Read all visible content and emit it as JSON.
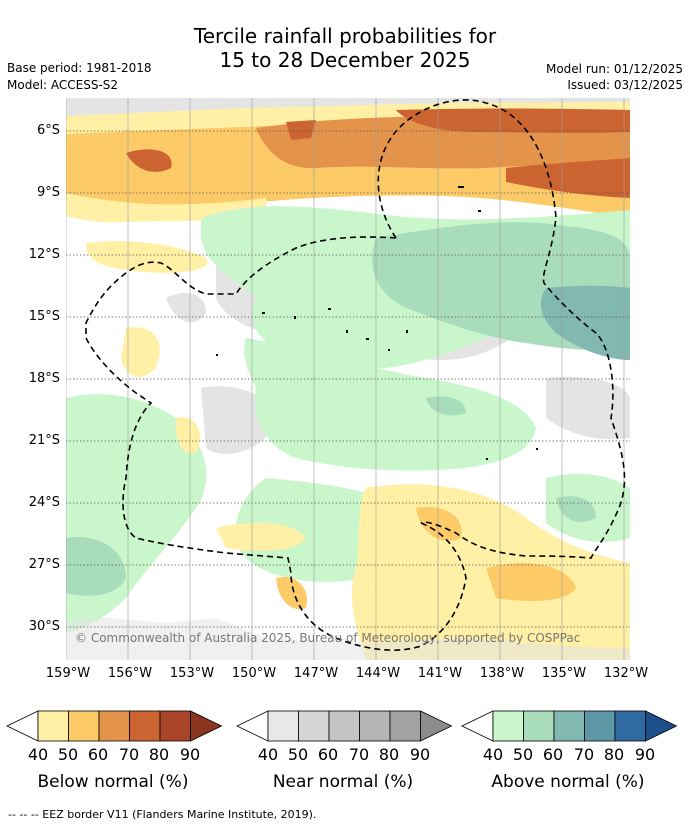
{
  "title": {
    "line1": "Tercile rainfall probabilities for",
    "line2": "15 to 28 December 2025"
  },
  "meta": {
    "base_period": "Base period: 1981-2018",
    "model": "Model: ACCESS-S2",
    "model_run": "Model run: 01/12/2025",
    "issued": "Issued: 03/12/2025"
  },
  "axes": {
    "lat_labels": [
      "6°S",
      "9°S",
      "12°S",
      "15°S",
      "18°S",
      "21°S",
      "24°S",
      "27°S",
      "30°S"
    ],
    "lon_labels": [
      "159°W",
      "156°W",
      "153°W",
      "150°W",
      "147°W",
      "144°W",
      "141°W",
      "138°W",
      "135°W",
      "132°W"
    ]
  },
  "copyright": "© Commonwealth of Australia 2025, Bureau of Meteorology, supported by COSPPac",
  "legend": {
    "ticks": [
      "40",
      "50",
      "60",
      "70",
      "80",
      "90"
    ],
    "below": {
      "label": "Below normal (%)",
      "colors": [
        "#fff0a6",
        "#fdca68",
        "#e3944a",
        "#cc6432",
        "#a84528",
        "#8a3520"
      ]
    },
    "near": {
      "label": "Near normal (%)",
      "colors": [
        "#e8e8e8",
        "#d6d6d6",
        "#c4c4c4",
        "#b4b4b4",
        "#a2a2a2",
        "#8c8c8c"
      ]
    },
    "above": {
      "label": "Above normal (%)",
      "colors": [
        "#c9f7cb",
        "#a8dcbb",
        "#82b8b2",
        "#5e97a6",
        "#2f6aa0",
        "#1d4f8a"
      ]
    }
  },
  "footer": "--  --  -- EEZ border V11 (Flanders Marine Institute, 2019)."
}
